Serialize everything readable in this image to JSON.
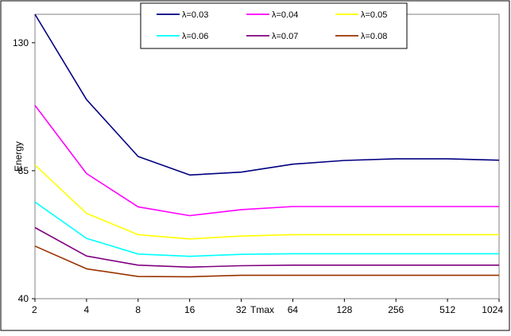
{
  "chart_data": {
    "type": "line",
    "title": "",
    "xlabel": "Tmax",
    "ylabel": "Energy",
    "x": [
      2,
      4,
      8,
      16,
      32,
      64,
      128,
      256,
      512,
      1024
    ],
    "x_tick_labels": [
      "2",
      "4",
      "8",
      "16",
      "32",
      "64",
      "128",
      "256",
      "512",
      "1024"
    ],
    "x_scale": "log2",
    "y_ticks": [
      40,
      85,
      130
    ],
    "y_tick_labels": [
      "40",
      "85",
      "130"
    ],
    "ylim": [
      40,
      140
    ],
    "grid": false,
    "legend_position": "top",
    "series": [
      {
        "name": "λ=0.03",
        "color": "#000080",
        "values": [
          140,
          110,
          90,
          83.5,
          84.5,
          87.3,
          88.6,
          89.2,
          89.2,
          88.7
        ]
      },
      {
        "name": "λ=0.04",
        "color": "#ff00ff",
        "values": [
          108,
          84,
          72.3,
          69.2,
          71.3,
          72.4,
          72.4,
          72.4,
          72.4,
          72.4
        ]
      },
      {
        "name": "λ=0.05",
        "color": "#ffff00",
        "values": [
          87,
          70,
          62.5,
          61,
          62,
          62.5,
          62.5,
          62.5,
          62.5,
          62.5
        ]
      },
      {
        "name": "λ=0.06",
        "color": "#00ffff",
        "values": [
          74,
          61.2,
          55.7,
          54.9,
          55.6,
          55.8,
          55.8,
          55.8,
          55.8,
          55.8
        ]
      },
      {
        "name": "λ=0.07",
        "color": "#800080",
        "values": [
          65,
          55,
          51.8,
          51.1,
          51.6,
          51.8,
          51.8,
          51.8,
          51.8,
          51.8
        ]
      },
      {
        "name": "λ=0.08",
        "color": "#993300",
        "values": [
          58.5,
          50.5,
          47.8,
          47.7,
          48.2,
          48.2,
          48.2,
          48.2,
          48.2,
          48.2
        ]
      }
    ]
  }
}
